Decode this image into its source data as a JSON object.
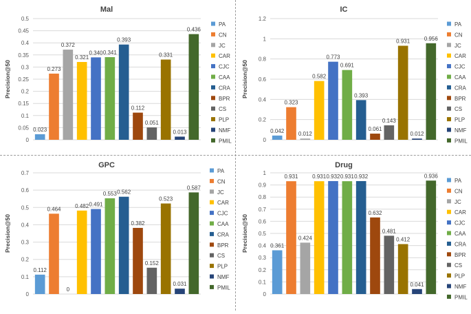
{
  "legend_labels": [
    "PA",
    "CN",
    "JC",
    "CAR",
    "CJC",
    "CAA",
    "CRA",
    "BPR",
    "CS",
    "PLP",
    "NMF",
    "PMIL"
  ],
  "colors": {
    "PA": "#5b9bd5",
    "CN": "#ed7d31",
    "JC": "#a5a5a5",
    "CAR": "#ffc000",
    "CJC": "#4472c4",
    "CAA": "#70ad47",
    "CRA": "#255e91",
    "BPR": "#9e480e",
    "CS": "#636363",
    "PLP": "#997300",
    "NMF": "#264478",
    "PMIL": "#43682b"
  },
  "chart_data": [
    {
      "type": "bar",
      "title": "Mal",
      "ylabel": "Precision@50",
      "xlabel": "",
      "ylim": [
        0,
        0.5
      ],
      "yticks": [
        0,
        0.05,
        0.1,
        0.15,
        0.2,
        0.25,
        0.3,
        0.35,
        0.4,
        0.45,
        0.5
      ],
      "ytick_labels": [
        "0",
        "0.05",
        "0.1",
        "0.15",
        "0.2",
        "0.25",
        "0.3",
        "0.35",
        "0.4",
        "0.45",
        "0.5"
      ],
      "grid": true,
      "legend": "right",
      "categories": [
        "PA",
        "CN",
        "JC",
        "CAR",
        "CJC",
        "CAA",
        "CRA",
        "BPR",
        "CS",
        "PLP",
        "NMF",
        "PMIL"
      ],
      "values": [
        0.023,
        0.273,
        0.372,
        0.321,
        0.34,
        0.341,
        0.393,
        0.112,
        0.051,
        0.331,
        0.013,
        0.436
      ],
      "data_labels": [
        "0.023",
        "0.273",
        "0.372",
        "0.321",
        "0.340",
        "0.341",
        "0.393",
        "0.112",
        "0.051",
        "0.331",
        "0.013",
        "0.436"
      ]
    },
    {
      "type": "bar",
      "title": "IC",
      "ylabel": "Precision@50",
      "xlabel": "",
      "ylim": [
        0,
        1.2
      ],
      "yticks": [
        0,
        0.2,
        0.4,
        0.6,
        0.8,
        1,
        1.2
      ],
      "ytick_labels": [
        "0",
        "0.2",
        "0.4",
        "0.6",
        "0.8",
        "1",
        "1.2"
      ],
      "grid": true,
      "legend": "right",
      "categories": [
        "PA",
        "CN",
        "JC",
        "CAR",
        "CJC",
        "CAA",
        "CRA",
        "BPR",
        "CS",
        "PLP",
        "NMF",
        "PMIL"
      ],
      "values": [
        0.042,
        0.323,
        0.012,
        0.582,
        0.773,
        0.691,
        0.393,
        0.061,
        0.143,
        0.931,
        0.012,
        0.956
      ],
      "data_labels": [
        "0.042",
        "0.323",
        "0.012",
        "0.582",
        "0.773",
        "0.691",
        "0.393",
        "0.061",
        "0.143",
        "0.931",
        "0.012",
        "0.956"
      ]
    },
    {
      "type": "bar",
      "title": "GPC",
      "ylabel": "Precision@50",
      "xlabel": "",
      "ylim": [
        0,
        0.7
      ],
      "yticks": [
        0,
        0.1,
        0.2,
        0.3,
        0.4,
        0.5,
        0.6,
        0.7
      ],
      "ytick_labels": [
        "0",
        "0.1",
        "0.2",
        "0.3",
        "0.4",
        "0.5",
        "0.6",
        "0.7"
      ],
      "grid": true,
      "legend": "right",
      "categories": [
        "PA",
        "CN",
        "JC",
        "CAR",
        "CJC",
        "CAA",
        "CRA",
        "BPR",
        "CS",
        "PLP",
        "NMF",
        "PMIL"
      ],
      "values": [
        0.112,
        0.464,
        0,
        0.482,
        0.491,
        0.553,
        0.562,
        0.382,
        0.152,
        0.523,
        0.031,
        0.587
      ],
      "data_labels": [
        "0.112",
        "0.464",
        "0",
        "0.482",
        "0.491",
        "0.553",
        "0.562",
        "0.382",
        "0.152",
        "0.523",
        "0.031",
        "0.587"
      ]
    },
    {
      "type": "bar",
      "title": "Drug",
      "ylabel": "Precision@50",
      "xlabel": "",
      "ylim": [
        0,
        1
      ],
      "yticks": [
        0,
        0.1,
        0.2,
        0.3,
        0.4,
        0.5,
        0.6,
        0.7,
        0.8,
        0.9,
        1
      ],
      "ytick_labels": [
        "0",
        "0.1",
        "0.2",
        "0.3",
        "0.4",
        "0.5",
        "0.6",
        "0.7",
        "0.8",
        "0.9",
        "1"
      ],
      "grid": true,
      "legend": "right",
      "categories": [
        "PA",
        "CN",
        "JC",
        "CAR",
        "CJC",
        "CAA",
        "CRA",
        "BPR",
        "CS",
        "PLP",
        "NMF",
        "PMIL"
      ],
      "values": [
        0.361,
        0.931,
        0.424,
        0.931,
        0.932,
        0.931,
        0.932,
        0.632,
        0.481,
        0.412,
        0.041,
        0.936
      ],
      "data_labels": [
        "0.361",
        "0.931",
        "0.424",
        "0.931",
        "0.932",
        "0.931",
        "0.932",
        "0.632",
        "0.481",
        "0.412",
        "0.041",
        "0.936"
      ]
    }
  ]
}
